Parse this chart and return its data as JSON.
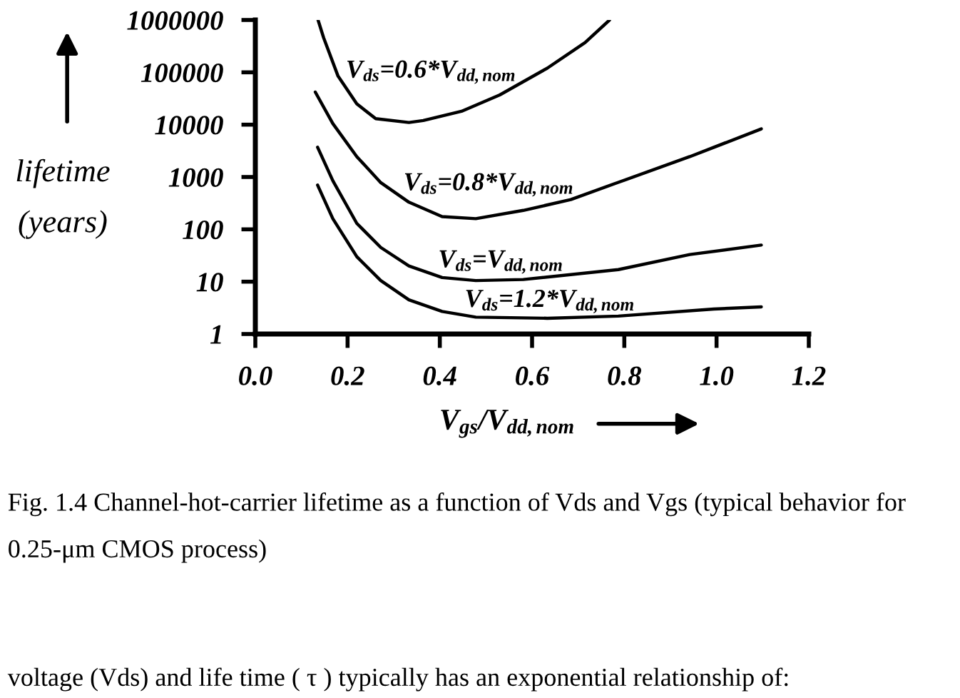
{
  "chart_data": {
    "type": "line",
    "xlabel": "V$_{gs}$/V$_{dd,nom}$",
    "ylabel": "lifetime\n(years)",
    "log": true,
    "line_style": "solid",
    "xlim": [
      0,
      1.2
    ],
    "xticks": [
      {
        "value": 0,
        "label": "0.0"
      },
      0.2,
      0.4,
      0.6,
      0.8,
      {
        "value": 1,
        "label": "1.0"
      },
      1.2
    ],
    "ylim": [
      1,
      1000000
    ],
    "yticks": [
      1,
      10,
      100,
      1000,
      10000,
      100000,
      1000000
    ],
    "series": [
      {
        "name": "V$_{ds}$=0.6*V$_{dd,nom}$",
        "color": "#000000",
        "x": [
          0.136,
          0.148,
          0.179,
          0.22,
          0.261,
          0.333,
          0.364,
          0.447,
          0.53,
          0.633,
          0.715,
          0.768
        ],
        "values": [
          1000000,
          460000,
          86000,
          25000,
          13000,
          11000,
          12000,
          18000,
          37000,
          120000,
          370000,
          1000000
        ]
      },
      {
        "name": "V$_{ds}$=0.8*V$_{dd,nom}$",
        "color": "#000000",
        "x": [
          0.13,
          0.168,
          0.22,
          0.272,
          0.333,
          0.405,
          0.478,
          0.581,
          0.684,
          0.787,
          0.942,
          1.097
        ],
        "values": [
          42000,
          10500,
          2450,
          780,
          330,
          175,
          160,
          230,
          370,
          790,
          2450,
          8300
        ]
      },
      {
        "name": "V$_{ds}$=V$_{dd,nom}$",
        "color": "#000000",
        "x": [
          0.135,
          0.168,
          0.22,
          0.272,
          0.333,
          0.405,
          0.478,
          0.581,
          0.787,
          0.942,
          1.097
        ],
        "values": [
          3700,
          850,
          130,
          45,
          20,
          12,
          10.5,
          11,
          17,
          33,
          50
        ]
      },
      {
        "name": "V$_{ds}$=1.2*V$_{dd,nom}$",
        "color": "#000000",
        "x": [
          0.135,
          0.168,
          0.22,
          0.272,
          0.333,
          0.405,
          0.478,
          0.633,
          0.787,
          0.994,
          1.097
        ],
        "values": [
          700,
          160,
          30,
          10.5,
          4.5,
          2.7,
          2.1,
          2.0,
          2.2,
          3.0,
          3.3
        ]
      }
    ],
    "annotations": [
      "Fig. 1.4 Channel-hot-carrier lifetime as a function of Vds and Vgs (typical behavior for 0.25-μm CMOS process)",
      "voltage (Vds) and life time ( τ ) typically has an exponential relationship of:"
    ]
  }
}
